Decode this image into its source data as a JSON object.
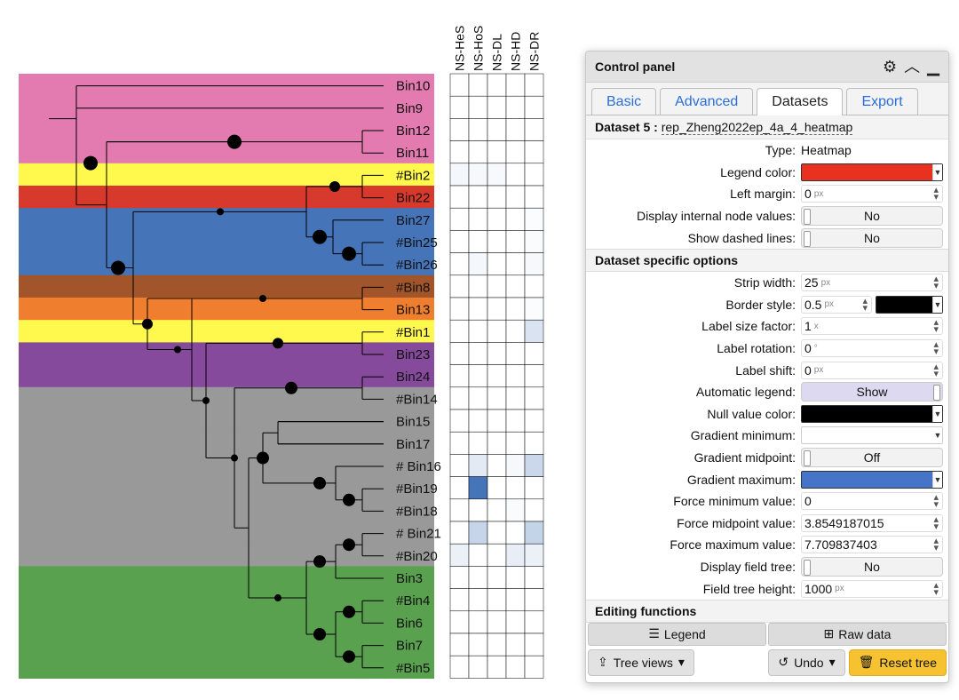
{
  "tree": {
    "leaves": [
      {
        "label": "Bin10",
        "color": "#e37ab0"
      },
      {
        "label": "Bin9",
        "color": "#e37ab0"
      },
      {
        "label": "Bin12",
        "color": "#e37ab0"
      },
      {
        "label": "Bin11",
        "color": "#e37ab0"
      },
      {
        "label": "#Bin2",
        "color": "#fff84d"
      },
      {
        "label": "Bin22",
        "color": "#d8392d"
      },
      {
        "label": "Bin27",
        "color": "#4574b8"
      },
      {
        "label": "#Bin25",
        "color": "#4574b8"
      },
      {
        "label": "#Bin26",
        "color": "#4574b8"
      },
      {
        "label": "#Bin8",
        "color": "#a2552a"
      },
      {
        "label": "Bin13",
        "color": "#ef7f2e"
      },
      {
        "label": "#Bin1",
        "color": "#fff84d"
      },
      {
        "label": "Bin23",
        "color": "#864a9c"
      },
      {
        "label": "Bin24",
        "color": "#864a9c"
      },
      {
        "label": "#Bin14",
        "color": "#999999"
      },
      {
        "label": "Bin15",
        "color": "#999999"
      },
      {
        "label": "Bin17",
        "color": "#999999"
      },
      {
        "label": "# Bin16",
        "color": "#999999"
      },
      {
        "label": "#Bin19",
        "color": "#999999"
      },
      {
        "label": "#Bin18",
        "color": "#999999"
      },
      {
        "label": "# Bin21",
        "color": "#999999"
      },
      {
        "label": "#Bin20",
        "color": "#999999"
      },
      {
        "label": "Bin3",
        "color": "#59a14f"
      },
      {
        "label": "#Bin4",
        "color": "#59a14f"
      },
      {
        "label": "Bin6",
        "color": "#59a14f"
      },
      {
        "label": "Bin7",
        "color": "#59a14f"
      },
      {
        "label": "#Bin5",
        "color": "#59a14f"
      }
    ]
  },
  "heatmap": {
    "columns": [
      "NS-HeS",
      "NS-HoS",
      "NS-DL",
      "NS-HD",
      "NS-DR"
    ],
    "values": [
      [
        0,
        0,
        0,
        0,
        0
      ],
      [
        0,
        0,
        0,
        0,
        0
      ],
      [
        0,
        0,
        0,
        0,
        0
      ],
      [
        0,
        0,
        0,
        0,
        0
      ],
      [
        0.06,
        0.05,
        0.04,
        0,
        0
      ],
      [
        0,
        0,
        0,
        0,
        0
      ],
      [
        0,
        0,
        0,
        0,
        0.02
      ],
      [
        0,
        0,
        0,
        0,
        0.03
      ],
      [
        0,
        0.06,
        0,
        0,
        0.05
      ],
      [
        0,
        0,
        0,
        0,
        0
      ],
      [
        0,
        0,
        0,
        0,
        0.02
      ],
      [
        0,
        0,
        0,
        0,
        0.2
      ],
      [
        0,
        0,
        0,
        0,
        0
      ],
      [
        0,
        0,
        0,
        0,
        0
      ],
      [
        0,
        0,
        0,
        0,
        0
      ],
      [
        0,
        0,
        0,
        0,
        0
      ],
      [
        0,
        0,
        0,
        0,
        0
      ],
      [
        0,
        0.15,
        0,
        0.05,
        0.28
      ],
      [
        0,
        1.0,
        0,
        0,
        0
      ],
      [
        0,
        0,
        0,
        0.03,
        0
      ],
      [
        0,
        0.3,
        0,
        0,
        0.32
      ],
      [
        0.1,
        0,
        0,
        0.12,
        0.1
      ],
      [
        0,
        0,
        0,
        0,
        0
      ],
      [
        0,
        0,
        0,
        0,
        0
      ],
      [
        0,
        0,
        0,
        0,
        0
      ],
      [
        0,
        0,
        0,
        0,
        0
      ],
      [
        0,
        0,
        0,
        0,
        0
      ]
    ],
    "max_color": "#4574b8"
  },
  "panel": {
    "title": "Control panel",
    "tabs": [
      "Basic",
      "Advanced",
      "Datasets",
      "Export"
    ],
    "dataset_prefix": "Dataset 5 :",
    "dataset_name": "rep_Zheng2022ep_4a_4_heatmap",
    "type_label": "Type:",
    "type_value": "Heatmap",
    "legend_color_label": "Legend color:",
    "legend_color": "#e8321f",
    "left_margin_label": "Left margin:",
    "left_margin_value": "0",
    "internal_values_label": "Display internal node values:",
    "internal_values_value": "No",
    "dashed_label": "Show dashed lines:",
    "dashed_value": "No",
    "section_specific": "Dataset specific options",
    "strip_width_label": "Strip width:",
    "strip_width_value": "25",
    "border_style_label": "Border style:",
    "border_style_value": "0.5",
    "border_color": "#000000",
    "label_size_label": "Label size factor:",
    "label_size_value": "1",
    "label_rotation_label": "Label rotation:",
    "label_rotation_value": "0",
    "label_shift_label": "Label shift:",
    "label_shift_value": "0",
    "auto_legend_label": "Automatic legend:",
    "auto_legend_value": "Show",
    "null_color_label": "Null value color:",
    "null_color": "#000000",
    "grad_min_label": "Gradient minimum:",
    "grad_min_color": "#ffffff",
    "grad_mid_label": "Gradient midpoint:",
    "grad_mid_value": "Off",
    "grad_max_label": "Gradient maximum:",
    "grad_max_color": "#4574c8",
    "force_min_label": "Force minimum value:",
    "force_min_value": "0",
    "force_mid_label": "Force midpoint value:",
    "force_mid_value": "3.8549187015",
    "force_max_label": "Force maximum value:",
    "force_max_value": "7.709837403",
    "field_tree_label": "Display field tree:",
    "field_tree_value": "No",
    "field_height_label": "Field tree height:",
    "field_height_value": "1000",
    "section_editing": "Editing functions",
    "legend_btn": "Legend",
    "raw_btn": "Raw data",
    "tree_views_btn": "Tree views",
    "undo_btn": "Undo",
    "reset_btn": "Reset tree",
    "unit_px": "px",
    "unit_x": "x",
    "unit_deg": "°"
  }
}
